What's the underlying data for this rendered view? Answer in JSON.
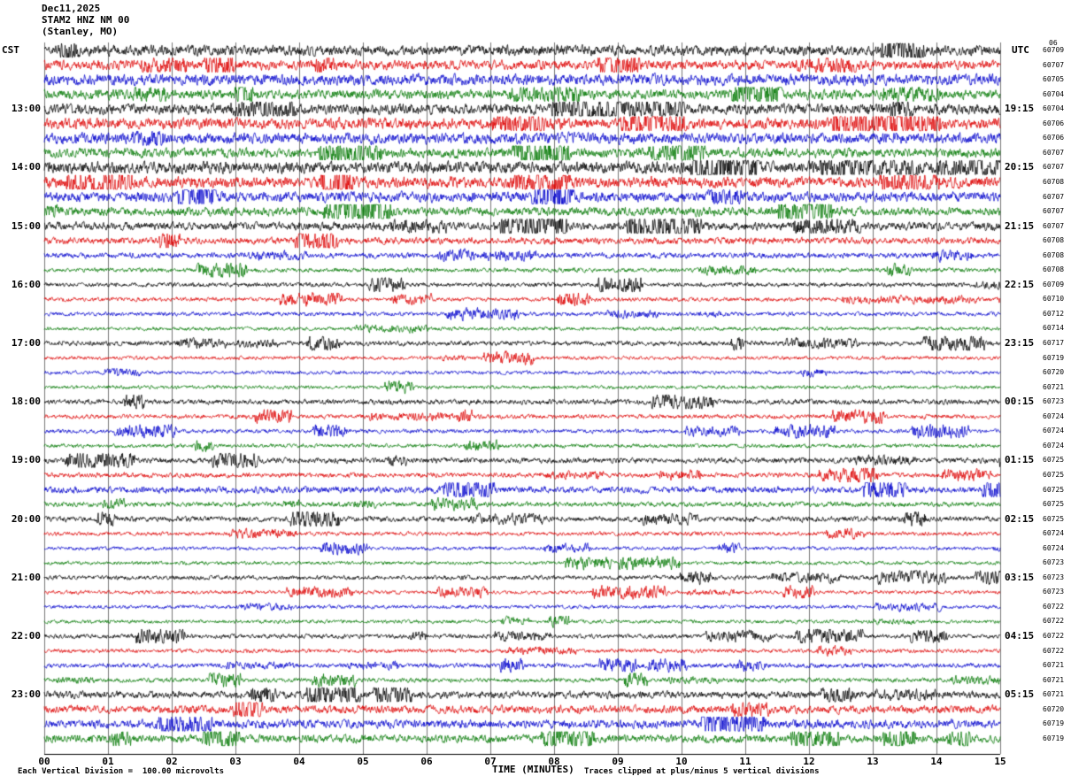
{
  "title": {
    "date": "Dec11,2025",
    "station": "STAM2 HNZ NM 00",
    "location": "(Stanley, MO)"
  },
  "axes": {
    "left_tz": "CST",
    "right_tz": "UTC",
    "x_label": "TIME (MINUTES)",
    "x_ticks": [
      "00",
      "01",
      "02",
      "03",
      "04",
      "05",
      "06",
      "07",
      "08",
      "09",
      "10",
      "11",
      "12",
      "13",
      "14",
      "15"
    ]
  },
  "footer": {
    "left_note": "Each Vertical Division =  100.00 microvolts",
    "right_note": "Traces clipped at plus/minus 5 vertical divisions"
  },
  "corner_mark": "06",
  "colors": {
    "trace_cycle": [
      "#000000",
      "#dd0000",
      "#0000cc",
      "#007700"
    ],
    "grid": "#777777",
    "axis": "#000000"
  },
  "chart_data": {
    "type": "line",
    "title": "Helicorder seismogram STAM2 HNZ NM 00 (Stanley, MO) Dec11,2025",
    "xlabel": "TIME (MINUTES)",
    "x_range_minutes": [
      0,
      15
    ],
    "minutes_per_row": 15,
    "rows_per_hour": 4,
    "vertical_division_microvolts": 100.0,
    "clip_divisions": 5,
    "rows": [
      {
        "cst_label": "",
        "utc_label": "",
        "right_value": "60709",
        "amplitude": 2.8
      },
      {
        "cst_label": "",
        "utc_label": "",
        "right_value": "60707",
        "amplitude": 2.6
      },
      {
        "cst_label": "",
        "utc_label": "",
        "right_value": "60705",
        "amplitude": 3.0
      },
      {
        "cst_label": "",
        "utc_label": "",
        "right_value": "60704",
        "amplitude": 2.6
      },
      {
        "cst_label": "13:00",
        "utc_label": "19:15",
        "right_value": "60704",
        "amplitude": 2.8
      },
      {
        "cst_label": "",
        "utc_label": "",
        "right_value": "60706",
        "amplitude": 3.0
      },
      {
        "cst_label": "",
        "utc_label": "",
        "right_value": "60706",
        "amplitude": 3.0
      },
      {
        "cst_label": "",
        "utc_label": "",
        "right_value": "60707",
        "amplitude": 2.6
      },
      {
        "cst_label": "14:00",
        "utc_label": "20:15",
        "right_value": "60707",
        "amplitude": 3.2
      },
      {
        "cst_label": "",
        "utc_label": "",
        "right_value": "60708",
        "amplitude": 3.0
      },
      {
        "cst_label": "",
        "utc_label": "",
        "right_value": "60707",
        "amplitude": 2.8
      },
      {
        "cst_label": "",
        "utc_label": "",
        "right_value": "60707",
        "amplitude": 2.4
      },
      {
        "cst_label": "15:00",
        "utc_label": "21:15",
        "right_value": "60707",
        "amplitude": 2.2
      },
      {
        "cst_label": "",
        "utc_label": "",
        "right_value": "60708",
        "amplitude": 1.8
      },
      {
        "cst_label": "",
        "utc_label": "",
        "right_value": "60708",
        "amplitude": 1.5
      },
      {
        "cst_label": "",
        "utc_label": "",
        "right_value": "60708",
        "amplitude": 1.2
      },
      {
        "cst_label": "16:00",
        "utc_label": "22:15",
        "right_value": "60709",
        "amplitude": 1.2
      },
      {
        "cst_label": "",
        "utc_label": "",
        "right_value": "60710",
        "amplitude": 1.1
      },
      {
        "cst_label": "",
        "utc_label": "",
        "right_value": "60712",
        "amplitude": 1.1
      },
      {
        "cst_label": "",
        "utc_label": "",
        "right_value": "60714",
        "amplitude": 1.0
      },
      {
        "cst_label": "17:00",
        "utc_label": "23:15",
        "right_value": "60717",
        "amplitude": 1.3
      },
      {
        "cst_label": "",
        "utc_label": "",
        "right_value": "60719",
        "amplitude": 1.0
      },
      {
        "cst_label": "",
        "utc_label": "",
        "right_value": "60720",
        "amplitude": 1.0
      },
      {
        "cst_label": "",
        "utc_label": "",
        "right_value": "60721",
        "amplitude": 1.0
      },
      {
        "cst_label": "18:00",
        "utc_label": "00:15",
        "right_value": "60723",
        "amplitude": 1.4
      },
      {
        "cst_label": "",
        "utc_label": "",
        "right_value": "60724",
        "amplitude": 1.2
      },
      {
        "cst_label": "",
        "utc_label": "",
        "right_value": "60724",
        "amplitude": 1.1
      },
      {
        "cst_label": "",
        "utc_label": "",
        "right_value": "60724",
        "amplitude": 1.1
      },
      {
        "cst_label": "19:00",
        "utc_label": "01:15",
        "right_value": "60725",
        "amplitude": 1.5
      },
      {
        "cst_label": "",
        "utc_label": "",
        "right_value": "60725",
        "amplitude": 1.3
      },
      {
        "cst_label": "",
        "utc_label": "",
        "right_value": "60725",
        "amplitude": 1.8
      },
      {
        "cst_label": "",
        "utc_label": "",
        "right_value": "60725",
        "amplitude": 1.4
      },
      {
        "cst_label": "20:00",
        "utc_label": "02:15",
        "right_value": "60725",
        "amplitude": 1.5
      },
      {
        "cst_label": "",
        "utc_label": "",
        "right_value": "60724",
        "amplitude": 1.1
      },
      {
        "cst_label": "",
        "utc_label": "",
        "right_value": "60724",
        "amplitude": 1.0
      },
      {
        "cst_label": "",
        "utc_label": "",
        "right_value": "60723",
        "amplitude": 1.0
      },
      {
        "cst_label": "21:00",
        "utc_label": "03:15",
        "right_value": "60723",
        "amplitude": 1.2
      },
      {
        "cst_label": "",
        "utc_label": "",
        "right_value": "60723",
        "amplitude": 1.0
      },
      {
        "cst_label": "",
        "utc_label": "",
        "right_value": "60722",
        "amplitude": 1.0
      },
      {
        "cst_label": "",
        "utc_label": "",
        "right_value": "60722",
        "amplitude": 1.0
      },
      {
        "cst_label": "22:00",
        "utc_label": "04:15",
        "right_value": "60722",
        "amplitude": 1.2
      },
      {
        "cst_label": "",
        "utc_label": "",
        "right_value": "60722",
        "amplitude": 1.1
      },
      {
        "cst_label": "",
        "utc_label": "",
        "right_value": "60721",
        "amplitude": 1.3
      },
      {
        "cst_label": "",
        "utc_label": "",
        "right_value": "60721",
        "amplitude": 1.2
      },
      {
        "cst_label": "23:00",
        "utc_label": "05:15",
        "right_value": "60721",
        "amplitude": 2.0
      },
      {
        "cst_label": "",
        "utc_label": "",
        "right_value": "60720",
        "amplitude": 2.2
      },
      {
        "cst_label": "",
        "utc_label": "",
        "right_value": "60719",
        "amplitude": 2.4
      },
      {
        "cst_label": "",
        "utc_label": "",
        "right_value": "60719",
        "amplitude": 2.2
      }
    ]
  }
}
